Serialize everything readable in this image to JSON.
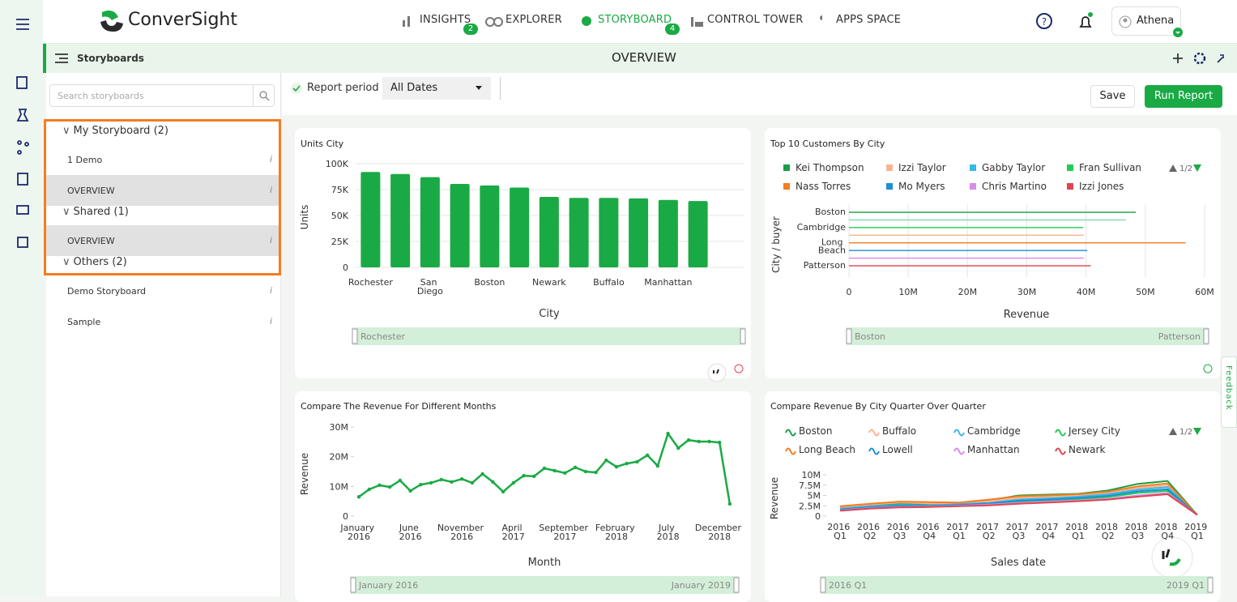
{
  "brand": "ConverSight",
  "nav": [
    {
      "label": "INSIGHTS",
      "badge": 2
    },
    {
      "label": "EXPLORER"
    },
    {
      "label": "STORYBOARD",
      "badge": 4
    },
    {
      "label": "CONTROL TOWER"
    },
    {
      "label": "APPS SPACE"
    }
  ],
  "user": "Athena",
  "header": {
    "section": "Storyboards",
    "title": "OVERVIEW"
  },
  "sidebar": {
    "search_placeholder": "Search storyboards",
    "groups": [
      {
        "name": "My Storyboard (2)",
        "items": [
          "1 Demo",
          "OVERVIEW"
        ]
      },
      {
        "name": "Shared (1)",
        "items": [
          "OVERVIEW"
        ]
      },
      {
        "name": "Others (2)",
        "items": [
          "Demo Storyboard",
          "Sample"
        ]
      }
    ]
  },
  "toolbar": {
    "report_period": "Report period",
    "period": "All Dates",
    "save": "Save",
    "run": "Run Report"
  },
  "feedback": "Feedback",
  "chart_data": [
    {
      "type": "bar",
      "title": "Units City",
      "color": "#1aaa45",
      "y_label": "Units",
      "x_label": "City",
      "range_start": "Rochester",
      "categories": [
        "Rochester",
        null,
        "San Diego",
        null,
        "Boston",
        null,
        "Newark",
        null,
        "Buffalo",
        null,
        "Manhattan",
        null
      ],
      "values": [
        92000,
        90000,
        87000,
        80500,
        79000,
        77000,
        68000,
        67000,
        67000,
        66500,
        65000,
        64000
      ],
      "ylim": [
        0,
        100000
      ],
      "yticks": [
        0,
        {
          "value": 25000,
          "label": "25K"
        },
        {
          "value": 50000,
          "label": "50K"
        },
        {
          "value": 75000,
          "label": "75K"
        },
        {
          "value": 100000,
          "label": "100K"
        }
      ],
      "grid": true
    },
    {
      "type": "bar",
      "horizontal": true,
      "title": "Top 10 Customers By City",
      "y_label": "City / buyer",
      "x_label": "Revenue",
      "range_start": "Boston",
      "range_end": "Patterson",
      "legend_page": "1/2",
      "legend": [
        {
          "name": "Kei Thompson",
          "color": "#1a9e45"
        },
        {
          "name": "Izzi Taylor",
          "color": "#f9b48e"
        },
        {
          "name": "Gabby Taylor",
          "color": "#36b9ea"
        },
        {
          "name": "Fran Sullivan",
          "color": "#22cc55"
        },
        {
          "name": "Nass Torres",
          "color": "#f57c20"
        },
        {
          "name": "Mo Myers",
          "color": "#1f8fd1"
        },
        {
          "name": "Chris Martino",
          "color": "#d88ce8"
        },
        {
          "name": "Izzi Jones",
          "color": "#e0454f"
        }
      ],
      "categories": [
        "Boston",
        null,
        "Cambridge",
        null,
        "Long Beach",
        null,
        null,
        "Patterson"
      ],
      "values": [
        48400000,
        46700000,
        39500000,
        39600000,
        56800000,
        40200000,
        39600000,
        40800000
      ],
      "colors": [
        "#1a9e45",
        "#7fd8a8",
        "#22cc55",
        "#f9b48e",
        "#f57c20",
        "#1f8fd1",
        "#d88ce8",
        "#e0454f"
      ],
      "xlim": [
        0,
        60000000
      ],
      "xticks": [
        0,
        {
          "value": 10000000,
          "label": "10M"
        },
        {
          "value": 20000000,
          "label": "20M"
        },
        {
          "value": 30000000,
          "label": "30M"
        },
        {
          "value": 40000000,
          "label": "40M"
        },
        {
          "value": 50000000,
          "label": "50M"
        },
        {
          "value": 60000000,
          "label": "60M"
        }
      ],
      "grid": true
    },
    {
      "type": "line",
      "title": "Compare The Revenue For Different Months",
      "color": "#1aaa45",
      "y_label": "Revenue",
      "x_label": "Month",
      "range_start": "January 2016",
      "range_end": "January 2019",
      "categories": [
        "January 2016",
        null,
        null,
        null,
        null,
        "June 2016",
        null,
        null,
        null,
        null,
        "November 2016",
        null,
        null,
        null,
        null,
        "April 2017",
        null,
        null,
        null,
        null,
        "September 2017",
        null,
        null,
        null,
        null,
        "February 2018",
        null,
        null,
        null,
        null,
        "July 2018",
        null,
        null,
        null,
        null,
        "December 2018",
        null
      ],
      "values": [
        6500000,
        9000000,
        10400000,
        9800000,
        12000000,
        8500000,
        10600000,
        11200000,
        12300000,
        11500000,
        12500000,
        11200000,
        14200000,
        11500000,
        8200000,
        11200000,
        13600000,
        13400000,
        16100000,
        15300000,
        14500000,
        16400000,
        15000000,
        14700000,
        18800000,
        16600000,
        17700000,
        18300000,
        20500000,
        16900000,
        27800000,
        22900000,
        25600000,
        25100000,
        25100000,
        24800000,
        4100000
      ],
      "ylim": [
        0,
        30000000
      ],
      "yticks": [
        0,
        {
          "value": 10000000,
          "label": "10M"
        },
        {
          "value": 20000000,
          "label": "20M"
        },
        {
          "value": 30000000,
          "label": "30M"
        }
      ]
    },
    {
      "type": "line",
      "title": "Compare Revenue By City Quarter Over Quarter",
      "y_label": "Revenue",
      "x_label": "Sales date",
      "range_start": "2016 Q1",
      "range_end": "2019 Q1",
      "legend_page": "1/2",
      "categories": [
        "2016 Q1",
        "2016 Q2",
        "2016 Q3",
        "2016 Q4",
        "2017 Q1",
        "2017 Q2",
        "2017 Q3",
        "2017 Q4",
        "2018 Q1",
        "2018 Q2",
        "2018 Q3",
        "2018 Q4",
        "2019 Q1"
      ],
      "series": [
        {
          "name": "Boston",
          "color": "#1a9e45",
          "values": [
            2000000,
            2600000,
            3000000,
            3000000,
            3200000,
            3800000,
            5000000,
            5200000,
            5400000,
            6200000,
            7800000,
            8500000,
            300000
          ]
        },
        {
          "name": "Buffalo",
          "color": "#f9b48e",
          "values": [
            2200000,
            2800000,
            3300000,
            3100000,
            3000000,
            3600000,
            4400000,
            4600000,
            4900000,
            5500000,
            6800000,
            7400000,
            300000
          ]
        },
        {
          "name": "Cambridge",
          "color": "#36b9ea",
          "values": [
            1800000,
            2400000,
            2700000,
            2600000,
            2900000,
            3200000,
            4000000,
            4300000,
            4700000,
            5300000,
            6400000,
            7000000,
            300000
          ]
        },
        {
          "name": "Jersey City",
          "color": "#22cc55",
          "values": [
            1500000,
            2000000,
            2300000,
            2400000,
            2600000,
            2900000,
            3400000,
            3700000,
            4100000,
            4600000,
            5600000,
            6100000,
            300000
          ]
        },
        {
          "name": "Long Beach",
          "color": "#f57c20",
          "values": [
            2400000,
            3000000,
            3500000,
            3400000,
            3300000,
            4000000,
            4800000,
            5000000,
            5300000,
            5900000,
            7200000,
            7900000,
            300000
          ]
        },
        {
          "name": "Lowell",
          "color": "#1f8fd1",
          "values": [
            1600000,
            2100000,
            2500000,
            2500000,
            2700000,
            3100000,
            3700000,
            4000000,
            4400000,
            4900000,
            6000000,
            6500000,
            300000
          ]
        },
        {
          "name": "Manhattan",
          "color": "#d88ce8",
          "values": [
            1400000,
            1900000,
            2200000,
            2300000,
            2500000,
            2800000,
            3200000,
            3500000,
            3800000,
            4200000,
            5000000,
            5600000,
            300000
          ]
        },
        {
          "name": "Newark",
          "color": "#e0454f",
          "values": [
            1300000,
            1800000,
            2100000,
            2200000,
            2400000,
            2600000,
            3000000,
            3300000,
            3600000,
            4000000,
            4700000,
            5300000,
            300000
          ]
        }
      ],
      "ylim": [
        0,
        10000000
      ],
      "yticks": [
        0,
        {
          "value": 2500000,
          "label": "2.5M"
        },
        {
          "value": 5000000,
          "label": "5M"
        },
        {
          "value": 7500000,
          "label": "7.5M"
        },
        {
          "value": 10000000,
          "label": "10M"
        }
      ]
    }
  ]
}
